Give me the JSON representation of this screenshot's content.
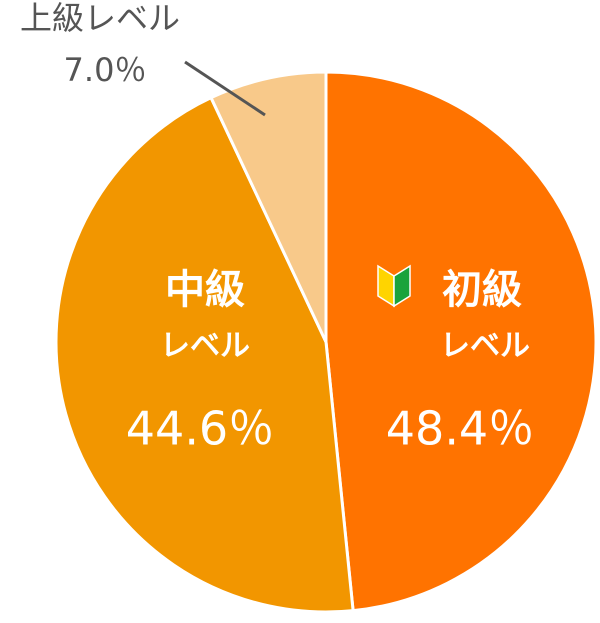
{
  "chart_data": {
    "type": "pie",
    "categories": [
      [
        "初級",
        "レベル"
      ],
      [
        "中級",
        "レベル"
      ],
      [
        "上級レベル"
      ]
    ],
    "values": [
      48.4,
      44.6,
      7.0
    ],
    "value_labels": [
      "48.4％",
      "44.6％",
      "7.0％"
    ],
    "colors": [
      "#ff7300",
      "#f29600",
      "#f8c98a"
    ]
  }
}
